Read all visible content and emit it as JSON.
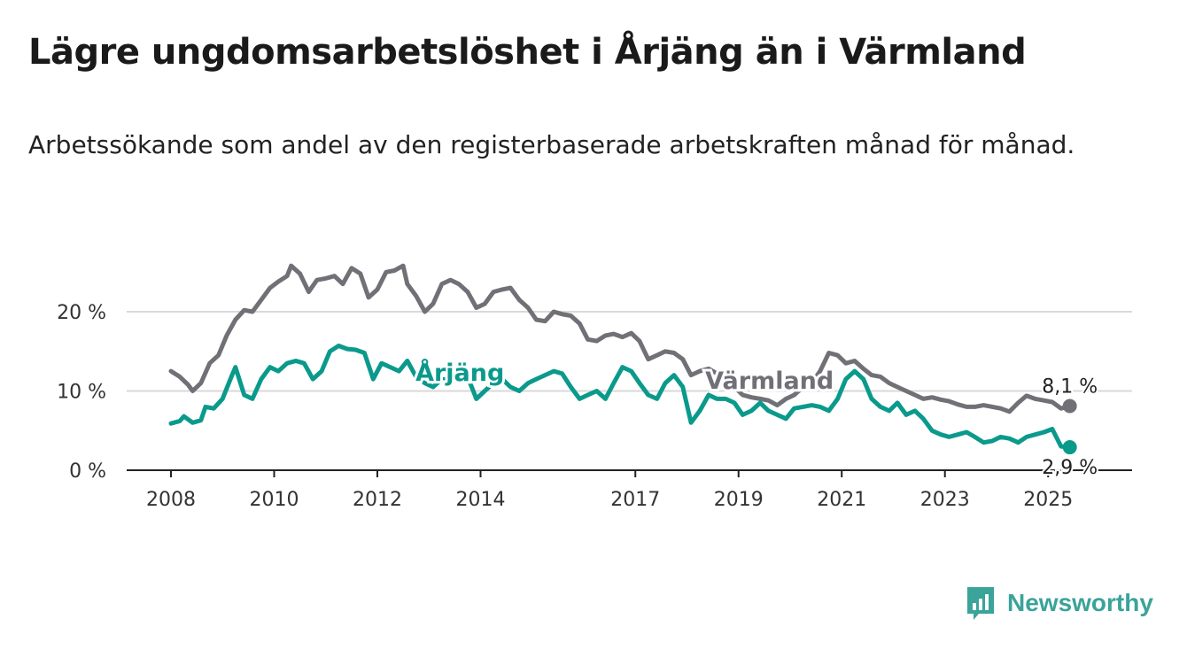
{
  "title": "Lägre ungdomsarbetslöshet i Årjäng än i Värmland",
  "subtitle": "Arbetssökande som andel av den registerbaserade arbetskraften månad för månad.",
  "brand": {
    "name": "Newsworthy",
    "icon": "chart-bars-icon",
    "color": "#3aa39a"
  },
  "chart_data": {
    "type": "line",
    "ylim": [
      0,
      26
    ],
    "xlim": [
      2008,
      2025.7
    ],
    "y_ticks": [
      {
        "value": 0,
        "label": "0 %"
      },
      {
        "value": 10,
        "label": "10 %"
      },
      {
        "value": 20,
        "label": "20 %"
      }
    ],
    "x_ticks": [
      {
        "value": 2008,
        "label": "2008"
      },
      {
        "value": 2010,
        "label": "2010"
      },
      {
        "value": 2012,
        "label": "2012"
      },
      {
        "value": 2014,
        "label": "2014"
      },
      {
        "value": 2017,
        "label": "2017"
      },
      {
        "value": 2019,
        "label": "2019"
      },
      {
        "value": 2021,
        "label": "2021"
      },
      {
        "value": 2023,
        "label": "2023"
      },
      {
        "value": 2025,
        "label": "2025"
      }
    ],
    "grid": true,
    "series": [
      {
        "name": "Värmland",
        "color": "#727077",
        "end_label": "8,1 %",
        "points": [
          [
            2008.0,
            12.5
          ],
          [
            2008.17,
            11.8
          ],
          [
            2008.33,
            10.8
          ],
          [
            2008.42,
            10.0
          ],
          [
            2008.58,
            11.0
          ],
          [
            2008.75,
            13.5
          ],
          [
            2008.92,
            14.5
          ],
          [
            2009.08,
            17.0
          ],
          [
            2009.25,
            19.0
          ],
          [
            2009.42,
            20.2
          ],
          [
            2009.58,
            20.0
          ],
          [
            2009.75,
            21.5
          ],
          [
            2009.92,
            23.0
          ],
          [
            2010.08,
            23.8
          ],
          [
            2010.25,
            24.5
          ],
          [
            2010.33,
            25.8
          ],
          [
            2010.5,
            24.8
          ],
          [
            2010.67,
            22.5
          ],
          [
            2010.83,
            24.0
          ],
          [
            2011.0,
            24.2
          ],
          [
            2011.17,
            24.5
          ],
          [
            2011.33,
            23.5
          ],
          [
            2011.5,
            25.5
          ],
          [
            2011.67,
            24.8
          ],
          [
            2011.83,
            21.8
          ],
          [
            2012.0,
            22.8
          ],
          [
            2012.17,
            25.0
          ],
          [
            2012.33,
            25.2
          ],
          [
            2012.5,
            25.8
          ],
          [
            2012.58,
            23.5
          ],
          [
            2012.75,
            22.0
          ],
          [
            2012.92,
            20.0
          ],
          [
            2013.08,
            21.0
          ],
          [
            2013.25,
            23.5
          ],
          [
            2013.42,
            24.0
          ],
          [
            2013.58,
            23.5
          ],
          [
            2013.75,
            22.5
          ],
          [
            2013.92,
            20.5
          ],
          [
            2014.08,
            21.0
          ],
          [
            2014.25,
            22.5
          ],
          [
            2014.42,
            22.8
          ],
          [
            2014.58,
            23.0
          ],
          [
            2014.75,
            21.5
          ],
          [
            2014.92,
            20.5
          ],
          [
            2015.08,
            19.0
          ],
          [
            2015.25,
            18.8
          ],
          [
            2015.42,
            20.0
          ],
          [
            2015.58,
            19.7
          ],
          [
            2015.75,
            19.5
          ],
          [
            2015.92,
            18.5
          ],
          [
            2016.08,
            16.5
          ],
          [
            2016.25,
            16.3
          ],
          [
            2016.42,
            17.0
          ],
          [
            2016.58,
            17.2
          ],
          [
            2016.75,
            16.8
          ],
          [
            2016.92,
            17.3
          ],
          [
            2017.08,
            16.3
          ],
          [
            2017.25,
            14.0
          ],
          [
            2017.42,
            14.5
          ],
          [
            2017.58,
            15.0
          ],
          [
            2017.75,
            14.8
          ],
          [
            2017.92,
            14.0
          ],
          [
            2018.08,
            12.0
          ],
          [
            2018.25,
            12.5
          ],
          [
            2018.42,
            12.8
          ],
          [
            2018.58,
            12.2
          ],
          [
            2018.75,
            11.0
          ],
          [
            2018.92,
            10.5
          ],
          [
            2019.08,
            9.5
          ],
          [
            2019.25,
            9.2
          ],
          [
            2019.42,
            9.0
          ],
          [
            2019.58,
            8.8
          ],
          [
            2019.75,
            8.2
          ],
          [
            2019.92,
            9.0
          ],
          [
            2020.08,
            9.5
          ],
          [
            2020.25,
            10.5
          ],
          [
            2020.42,
            11.0
          ],
          [
            2020.58,
            12.5
          ],
          [
            2020.75,
            14.8
          ],
          [
            2020.92,
            14.5
          ],
          [
            2021.08,
            13.5
          ],
          [
            2021.25,
            13.8
          ],
          [
            2021.42,
            12.8
          ],
          [
            2021.58,
            12.0
          ],
          [
            2021.75,
            11.8
          ],
          [
            2021.92,
            11.0
          ],
          [
            2022.08,
            10.5
          ],
          [
            2022.25,
            10.0
          ],
          [
            2022.42,
            9.5
          ],
          [
            2022.58,
            9.0
          ],
          [
            2022.75,
            9.2
          ],
          [
            2022.92,
            8.9
          ],
          [
            2023.08,
            8.7
          ],
          [
            2023.25,
            8.3
          ],
          [
            2023.42,
            8.0
          ],
          [
            2023.58,
            8.0
          ],
          [
            2023.75,
            8.2
          ],
          [
            2023.92,
            8.0
          ],
          [
            2024.08,
            7.8
          ],
          [
            2024.25,
            7.4
          ],
          [
            2024.42,
            8.5
          ],
          [
            2024.58,
            9.4
          ],
          [
            2024.75,
            9.0
          ],
          [
            2024.92,
            8.8
          ],
          [
            2025.08,
            8.6
          ],
          [
            2025.25,
            7.8
          ],
          [
            2025.42,
            8.1
          ]
        ]
      },
      {
        "name": "Årjäng",
        "color": "#0a9a8c",
        "end_label": "2,9 %",
        "points": [
          [
            2008.0,
            5.9
          ],
          [
            2008.17,
            6.2
          ],
          [
            2008.25,
            6.8
          ],
          [
            2008.42,
            6.0
          ],
          [
            2008.58,
            6.3
          ],
          [
            2008.67,
            8.0
          ],
          [
            2008.83,
            7.8
          ],
          [
            2009.0,
            9.0
          ],
          [
            2009.17,
            11.8
          ],
          [
            2009.25,
            13.0
          ],
          [
            2009.42,
            9.5
          ],
          [
            2009.58,
            9.0
          ],
          [
            2009.75,
            11.5
          ],
          [
            2009.92,
            13.0
          ],
          [
            2010.08,
            12.5
          ],
          [
            2010.25,
            13.5
          ],
          [
            2010.42,
            13.8
          ],
          [
            2010.58,
            13.5
          ],
          [
            2010.75,
            11.5
          ],
          [
            2010.92,
            12.5
          ],
          [
            2011.08,
            15.0
          ],
          [
            2011.25,
            15.7
          ],
          [
            2011.42,
            15.3
          ],
          [
            2011.58,
            15.2
          ],
          [
            2011.75,
            14.8
          ],
          [
            2011.92,
            11.5
          ],
          [
            2012.08,
            13.5
          ],
          [
            2012.25,
            13.0
          ],
          [
            2012.42,
            12.5
          ],
          [
            2012.58,
            13.8
          ],
          [
            2012.75,
            11.8
          ],
          [
            2012.92,
            11.0
          ],
          [
            2013.08,
            10.5
          ],
          [
            2013.25,
            11.5
          ],
          [
            2013.42,
            11.3
          ],
          [
            2013.58,
            12.0
          ],
          [
            2013.75,
            11.8
          ],
          [
            2013.92,
            9.0
          ],
          [
            2014.08,
            10.0
          ],
          [
            2014.25,
            11.0
          ],
          [
            2014.42,
            11.5
          ],
          [
            2014.58,
            10.5
          ],
          [
            2014.75,
            10.0
          ],
          [
            2014.92,
            11.0
          ],
          [
            2015.08,
            11.5
          ],
          [
            2015.25,
            12.0
          ],
          [
            2015.42,
            12.5
          ],
          [
            2015.58,
            12.2
          ],
          [
            2015.75,
            10.5
          ],
          [
            2015.92,
            9.0
          ],
          [
            2016.08,
            9.5
          ],
          [
            2016.25,
            10.0
          ],
          [
            2016.42,
            9.0
          ],
          [
            2016.58,
            11.0
          ],
          [
            2016.75,
            13.0
          ],
          [
            2016.92,
            12.5
          ],
          [
            2017.08,
            11.0
          ],
          [
            2017.25,
            9.5
          ],
          [
            2017.42,
            9.0
          ],
          [
            2017.58,
            11.0
          ],
          [
            2017.75,
            12.0
          ],
          [
            2017.92,
            10.5
          ],
          [
            2018.08,
            6.0
          ],
          [
            2018.25,
            7.5
          ],
          [
            2018.42,
            9.5
          ],
          [
            2018.58,
            9.0
          ],
          [
            2018.75,
            9.0
          ],
          [
            2018.92,
            8.5
          ],
          [
            2019.08,
            7.0
          ],
          [
            2019.25,
            7.5
          ],
          [
            2019.42,
            8.5
          ],
          [
            2019.58,
            7.5
          ],
          [
            2019.75,
            7.0
          ],
          [
            2019.92,
            6.5
          ],
          [
            2020.08,
            7.8
          ],
          [
            2020.25,
            8.0
          ],
          [
            2020.42,
            8.2
          ],
          [
            2020.58,
            8.0
          ],
          [
            2020.75,
            7.5
          ],
          [
            2020.92,
            9.0
          ],
          [
            2021.08,
            11.5
          ],
          [
            2021.25,
            12.5
          ],
          [
            2021.42,
            11.5
          ],
          [
            2021.58,
            9.0
          ],
          [
            2021.75,
            8.0
          ],
          [
            2021.92,
            7.5
          ],
          [
            2022.08,
            8.5
          ],
          [
            2022.25,
            7.0
          ],
          [
            2022.42,
            7.5
          ],
          [
            2022.58,
            6.5
          ],
          [
            2022.75,
            5.0
          ],
          [
            2022.92,
            4.5
          ],
          [
            2023.08,
            4.2
          ],
          [
            2023.25,
            4.5
          ],
          [
            2023.42,
            4.8
          ],
          [
            2023.58,
            4.2
          ],
          [
            2023.75,
            3.5
          ],
          [
            2023.92,
            3.7
          ],
          [
            2024.08,
            4.2
          ],
          [
            2024.25,
            4.0
          ],
          [
            2024.42,
            3.5
          ],
          [
            2024.58,
            4.2
          ],
          [
            2024.75,
            4.5
          ],
          [
            2024.92,
            4.8
          ],
          [
            2025.08,
            5.2
          ],
          [
            2025.25,
            3.0
          ],
          [
            2025.42,
            2.9
          ]
        ]
      }
    ],
    "series_labels": [
      {
        "series": "Årjäng",
        "text": "Årjäng",
        "x": 2013.6,
        "y": 11.3
      },
      {
        "series": "Värmland",
        "text": "Värmland",
        "x": 2019.6,
        "y": 10.3
      }
    ]
  }
}
